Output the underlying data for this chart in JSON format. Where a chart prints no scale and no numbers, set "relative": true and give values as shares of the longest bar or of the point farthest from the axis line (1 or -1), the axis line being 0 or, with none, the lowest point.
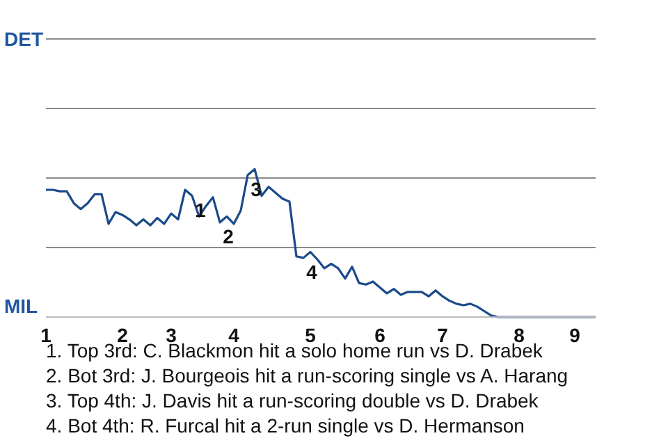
{
  "chart_data": {
    "type": "line",
    "color": "#1a4a8a",
    "relative": true,
    "categories": [
      "1",
      null,
      null,
      null,
      null,
      null,
      null,
      null,
      null,
      null,
      null,
      "2",
      null,
      null,
      null,
      null,
      null,
      null,
      "3",
      null,
      null,
      null,
      null,
      null,
      null,
      null,
      null,
      "4",
      null,
      null,
      null,
      null,
      null,
      null,
      null,
      null,
      null,
      null,
      "5",
      null,
      null,
      null,
      null,
      null,
      null,
      null,
      null,
      null,
      "6",
      null,
      null,
      null,
      null,
      null,
      null,
      null,
      null,
      "7",
      null,
      null,
      null,
      null,
      null,
      null,
      null,
      null,
      null,
      null,
      "8",
      null,
      null,
      null,
      null,
      null,
      null,
      null,
      "9",
      null,
      null,
      null
    ],
    "values": [
      0.86,
      0.86,
      0.85,
      0.85,
      0.77,
      0.73,
      0.77,
      0.83,
      0.83,
      0.63,
      0.71,
      0.69,
      0.66,
      0.62,
      0.66,
      0.62,
      0.67,
      0.63,
      0.7,
      0.66,
      0.86,
      0.82,
      0.68,
      0.75,
      0.81,
      0.64,
      0.68,
      0.63,
      0.72,
      0.96,
      1,
      0.82,
      0.88,
      0.84,
      0.8,
      0.78,
      0.41,
      0.4,
      0.44,
      0.39,
      0.33,
      0.36,
      0.33,
      0.26,
      0.34,
      0.23,
      0.22,
      0.24,
      0.2,
      0.16,
      0.19,
      0.15,
      0.17,
      0.17,
      0.17,
      0.14,
      0.18,
      0.14,
      0.11,
      0.09,
      0.08,
      0.09,
      0.07,
      0.04,
      0.01,
      0,
      0,
      0,
      0,
      0,
      0,
      0,
      0,
      0,
      0,
      0,
      0,
      0,
      0,
      0
    ],
    "marker": "none",
    "ref_lines": [
      {
        "axis": "y",
        "value": 0.47,
        "color": "#8a8a8a"
      },
      {
        "axis": "y",
        "value": 0.94,
        "color": "#8a8a8a"
      },
      {
        "axis": "y",
        "value": 1.41,
        "color": "#8a8a8a"
      },
      {
        "axis": "y",
        "value": 1.88,
        "color": "#8a8a8a"
      }
    ],
    "annotations": [
      "DET",
      "MIL",
      {
        "text": "1",
        "y": 0.82
      },
      {
        "text": "2",
        "y": 0.64
      },
      {
        "text": "3",
        "y": 0.96
      },
      {
        "text": "4",
        "y": 0.4
      },
      "1. Top 3rd: C. Blackmon hit a solo home run vs D. Drabek",
      "2. Bot 3rd: J. Bourgeois hit a run-scoring single vs A. Harang",
      "3. Top 4th: J. Davis hit a run-scoring double vs D. Drabek",
      "4. Bot 4th: R. Furcal hit a 2-run single vs D. Hermanson"
    ]
  }
}
